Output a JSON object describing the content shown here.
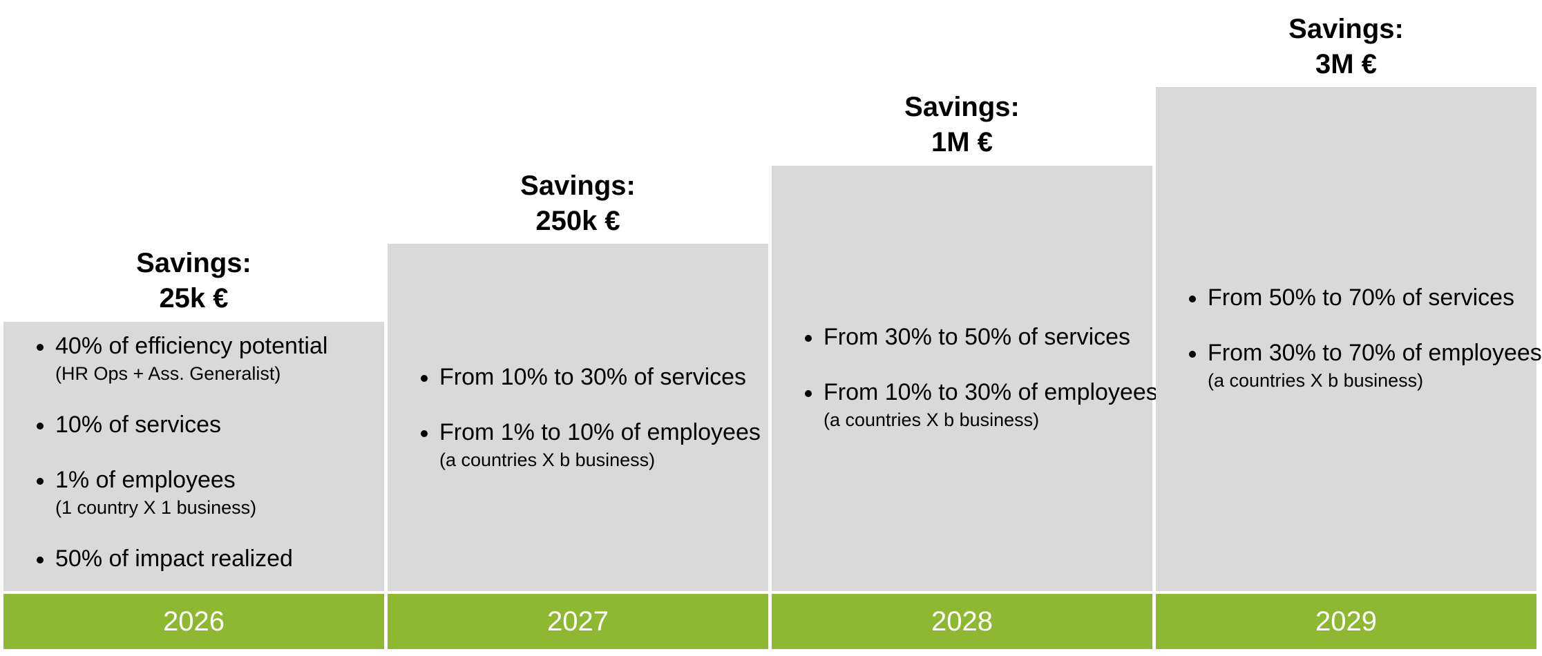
{
  "columns": [
    {
      "year": "2026",
      "savings_label": "Savings:",
      "savings_value": "25k €",
      "bullets": [
        {
          "text": "40% of efficiency potential",
          "sub": "(HR Ops + Ass. Generalist)"
        },
        {
          "text": "10% of services",
          "sub": null
        },
        {
          "text": "1% of employees",
          "sub": "(1 country X 1 business)"
        },
        {
          "text": "50% of impact realized",
          "sub": null
        }
      ]
    },
    {
      "year": "2027",
      "savings_label": "Savings:",
      "savings_value": "250k €",
      "bullets": [
        {
          "text": "From 10%  to 30% of services",
          "sub": null
        },
        {
          "text": "From 1% to 10% of employees",
          "sub": "(a countries X b business)"
        }
      ]
    },
    {
      "year": "2028",
      "savings_label": "Savings:",
      "savings_value": "1M €",
      "bullets": [
        {
          "text": "From 30% to 50% of services",
          "sub": null
        },
        {
          "text": "From 10% to 30% of employees",
          "sub": "(a countries X b business)"
        }
      ]
    },
    {
      "year": "2029",
      "savings_label": "Savings:",
      "savings_value": "3M €",
      "bullets": [
        {
          "text": "From 50% to 70% of services",
          "sub": null
        },
        {
          "text": "From 30% to 70% of employees",
          "sub": "(a countries X b business)"
        }
      ]
    }
  ],
  "colors": {
    "box_fill": "#d9d9d9",
    "year_bar": "#8fb832",
    "year_text": "#ffffff"
  }
}
